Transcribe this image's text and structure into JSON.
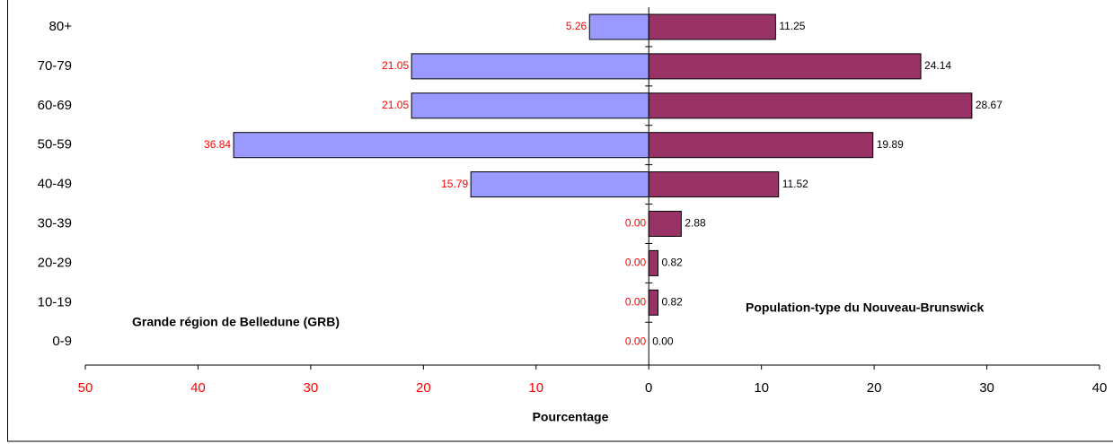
{
  "chart_data": {
    "type": "pyramid",
    "categories": [
      "80+",
      "70-79",
      "60-69",
      "50-59",
      "40-49",
      "30-39",
      "20-29",
      "10-19",
      "0-9"
    ],
    "series": [
      {
        "name": "Grande région de Belledune (GRB)",
        "color": "#9999ff",
        "side": "left",
        "values": [
          5.26,
          21.05,
          21.05,
          36.84,
          15.79,
          0,
          0,
          0,
          0
        ],
        "value_labels": [
          "5.26",
          "21.05",
          "21.05",
          "36.84",
          "15.79",
          "0.00",
          "0.00",
          "0.00",
          "0.00"
        ]
      },
      {
        "name": "Population-type du Nouveau-Brunswick",
        "color": "#993366",
        "side": "right",
        "values": [
          11.25,
          24.14,
          28.67,
          19.89,
          11.52,
          2.88,
          0.82,
          0.82,
          0
        ],
        "value_labels": [
          "11.25",
          "24.14",
          "28.67",
          "19.89",
          "11.52",
          "2.88",
          "0.82",
          "0.82",
          "0.00"
        ]
      }
    ],
    "x_label": "Pourcentage",
    "xlim": [
      -50,
      40
    ],
    "xticks": [
      {
        "value": -50,
        "label": "50"
      },
      {
        "value": -40,
        "label": "40"
      },
      {
        "value": -30,
        "label": "30"
      },
      {
        "value": -20,
        "label": "20"
      },
      {
        "value": -10,
        "label": "10"
      },
      0,
      10,
      20,
      30,
      40
    ]
  }
}
